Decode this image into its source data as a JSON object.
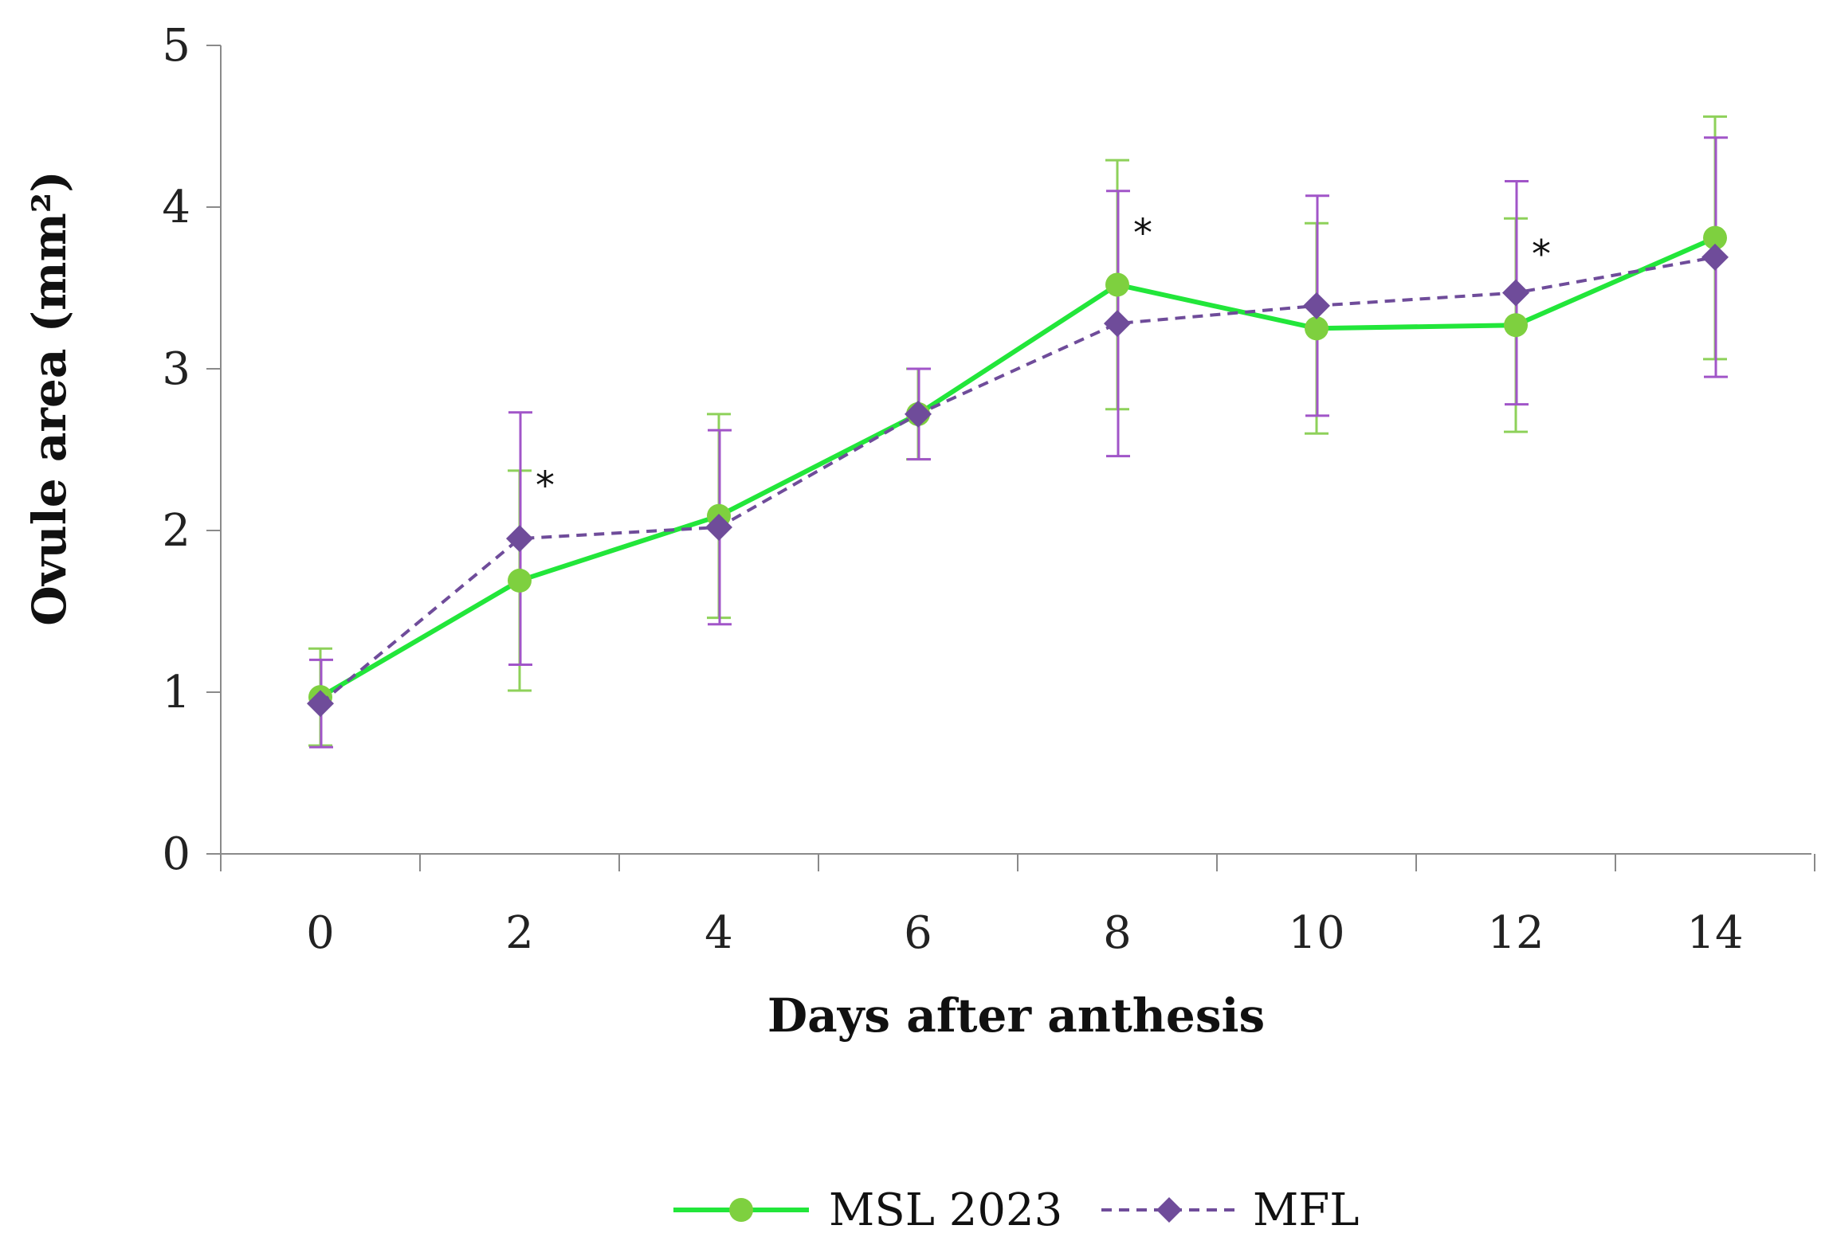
{
  "chart_data": {
    "type": "line",
    "xlabel": "Days after anthesis",
    "ylabel": "Ovule area (mm²)",
    "ylim": [
      0,
      5
    ],
    "yticks": [
      "0",
      "1",
      "2",
      "3",
      "4",
      "5"
    ],
    "x": [
      0,
      2,
      4,
      6,
      8,
      10,
      12,
      14
    ],
    "xtick_labels": [
      "0",
      "2",
      "4",
      "6",
      "8",
      "10",
      "12",
      "14"
    ],
    "grid": false,
    "legend_position": "bottom",
    "series": [
      {
        "name": "MSL 2023",
        "color": "#22E63A",
        "marker_color": "#7ED03F",
        "error_color": "#8ED15A",
        "marker": "circle",
        "line_style": "solid",
        "values": [
          0.97,
          1.69,
          2.09,
          2.72,
          3.52,
          3.25,
          3.27,
          3.81
        ],
        "error": [
          0.3,
          0.68,
          0.63,
          0.28,
          0.77,
          0.65,
          0.66,
          0.75
        ]
      },
      {
        "name": "MFL",
        "color": "#6F4C9A",
        "marker_color": "#6F4C9A",
        "error_color": "#A155C8",
        "marker": "diamond",
        "line_style": "dashed",
        "values": [
          0.93,
          1.95,
          2.02,
          2.72,
          3.28,
          3.39,
          3.47,
          3.69
        ],
        "error": [
          0.27,
          0.78,
          0.6,
          0.28,
          0.82,
          0.68,
          0.69,
          0.74
        ]
      }
    ],
    "annotations": [
      {
        "text": "*",
        "x": 2
      },
      {
        "text": "*",
        "x": 8
      },
      {
        "text": "*",
        "x": 12
      }
    ]
  }
}
